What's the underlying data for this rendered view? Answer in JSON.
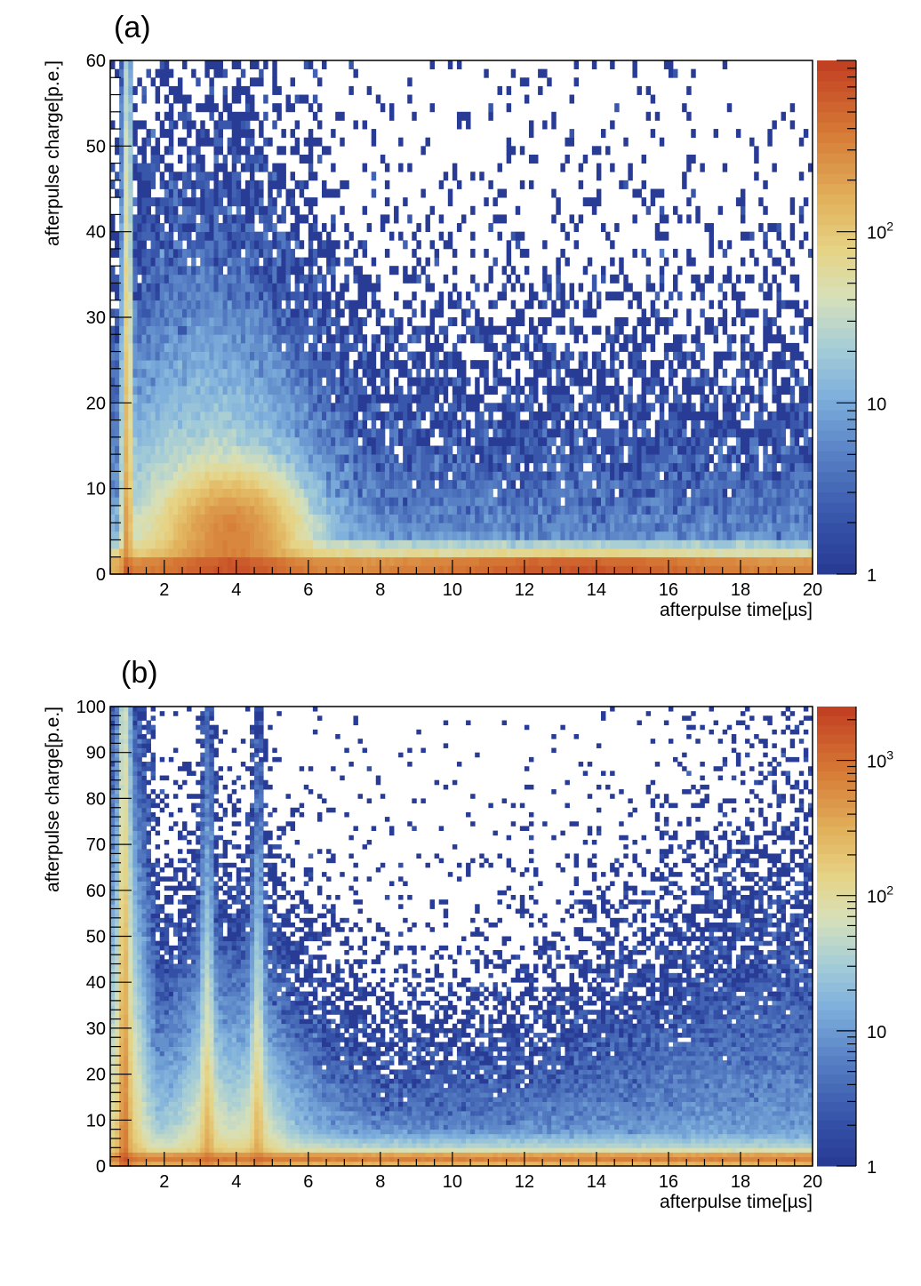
{
  "chart_data": [
    {
      "type": "heatmap",
      "panel_label": "(a)",
      "xlabel": "afterpulse time[µs]",
      "ylabel": "afterpulse charge[p.e.]",
      "xlim": [
        0.5,
        20
      ],
      "ylim": [
        0,
        60
      ],
      "x_ticks": [
        2,
        4,
        6,
        8,
        10,
        12,
        14,
        16,
        18,
        20
      ],
      "x_tick_labels": [
        "2",
        "4",
        "6",
        "8",
        "10",
        "12",
        "14",
        "16",
        "18",
        "20"
      ],
      "y_ticks": [
        0,
        10,
        20,
        30,
        40,
        50,
        60
      ],
      "y_tick_labels": [
        "0",
        "10",
        "20",
        "30",
        "40",
        "50",
        "60"
      ],
      "colorbar": {
        "scale": "log",
        "range": [
          1,
          1000
        ],
        "ticks": [
          1,
          10,
          100
        ],
        "tick_labels": [
          "1",
          "10",
          "10^2"
        ]
      },
      "bins": {
        "nx": 156,
        "ny": 60
      },
      "features": [
        {
          "name": "single p.e. band",
          "charge": 1,
          "intensity": 500
        },
        {
          "name": "peak near 1 µs",
          "time": 0.95,
          "intensity": 300
        },
        {
          "name": "broad peak near 4 µs",
          "time": 4.0,
          "charge": 5,
          "intensity": 250
        },
        {
          "name": "band 12-16 µs at ~1 p.e.",
          "time": 14,
          "intensity": 800
        }
      ]
    },
    {
      "type": "heatmap",
      "panel_label": "(b)",
      "xlabel": "afterpulse time[µs]",
      "ylabel": "afterpulse charge[p.e.]",
      "xlim": [
        0.5,
        20
      ],
      "ylim": [
        0,
        100
      ],
      "x_ticks": [
        2,
        4,
        6,
        8,
        10,
        12,
        14,
        16,
        18,
        20
      ],
      "x_tick_labels": [
        "2",
        "4",
        "6",
        "8",
        "10",
        "12",
        "14",
        "16",
        "18",
        "20"
      ],
      "y_ticks": [
        0,
        10,
        20,
        30,
        40,
        50,
        60,
        70,
        80,
        90,
        100
      ],
      "y_tick_labels": [
        "0",
        "10",
        "20",
        "30",
        "40",
        "50",
        "60",
        "70",
        "80",
        "90",
        "100"
      ],
      "colorbar": {
        "scale": "log",
        "range": [
          1,
          2500
        ],
        "ticks": [
          1,
          10,
          100,
          1000
        ],
        "tick_labels": [
          "1",
          "10",
          "10^2",
          "10^3"
        ]
      },
      "bins": {
        "nx": 156,
        "ny": 100
      },
      "features": [
        {
          "name": "single p.e. band",
          "charge": 1.5,
          "intensity": 900
        },
        {
          "name": "peak near 0.9 µs",
          "time": 0.9,
          "intensity": 600
        },
        {
          "name": "peak near 3.2 µs",
          "time": 3.2,
          "intensity": 300
        },
        {
          "name": "peak near 4.6 µs",
          "time": 4.6,
          "intensity": 300
        }
      ]
    }
  ]
}
